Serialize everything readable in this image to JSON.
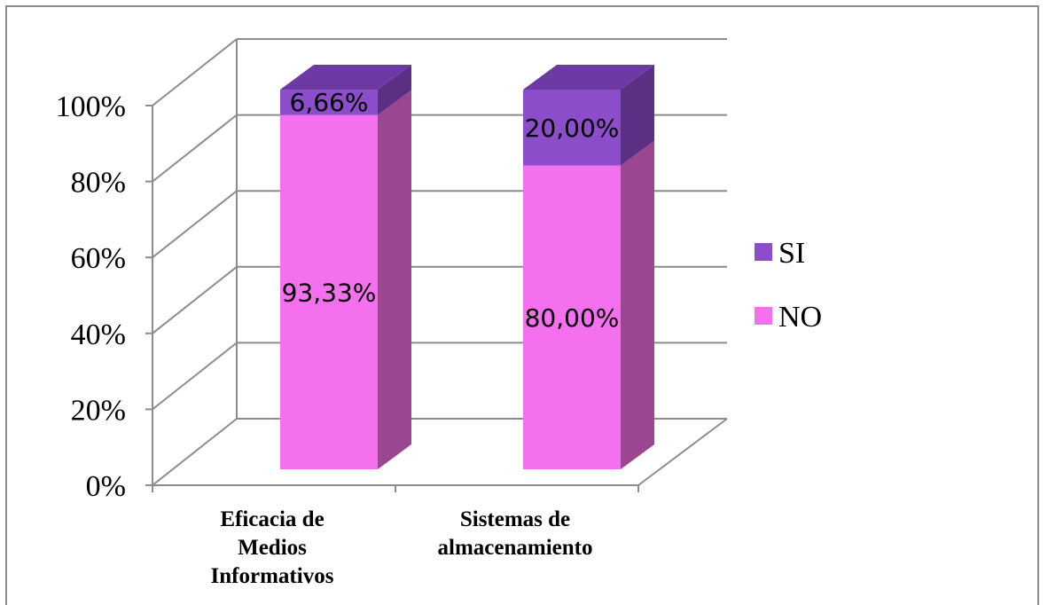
{
  "chart_data": {
    "type": "bar",
    "stacked": true,
    "percent": true,
    "three_d": true,
    "categories": [
      [
        "Eficacia de",
        "Medios",
        "Informativos"
      ],
      [
        "Sistemas de",
        "almacenamiento"
      ]
    ],
    "series": [
      {
        "name": "NO",
        "values": [
          93.33,
          80.0
        ],
        "labels": [
          "93,33%",
          "80,00%"
        ],
        "color": "#f570ee",
        "side": "#9b4691",
        "top": "#c76ad0"
      },
      {
        "name": "SI",
        "values": [
          6.66,
          20.0
        ],
        "labels": [
          "6,66%",
          "20,00%"
        ],
        "color": "#8c4dcb",
        "side": "#5a2f84",
        "top": "#6d3aa3"
      }
    ],
    "y_ticks": [
      "0%",
      "20%",
      "40%",
      "60%",
      "80%",
      "100%"
    ],
    "ylim": [
      0,
      100
    ],
    "grid": true,
    "legend": "right",
    "legend_order": [
      "SI",
      "NO"
    ]
  }
}
